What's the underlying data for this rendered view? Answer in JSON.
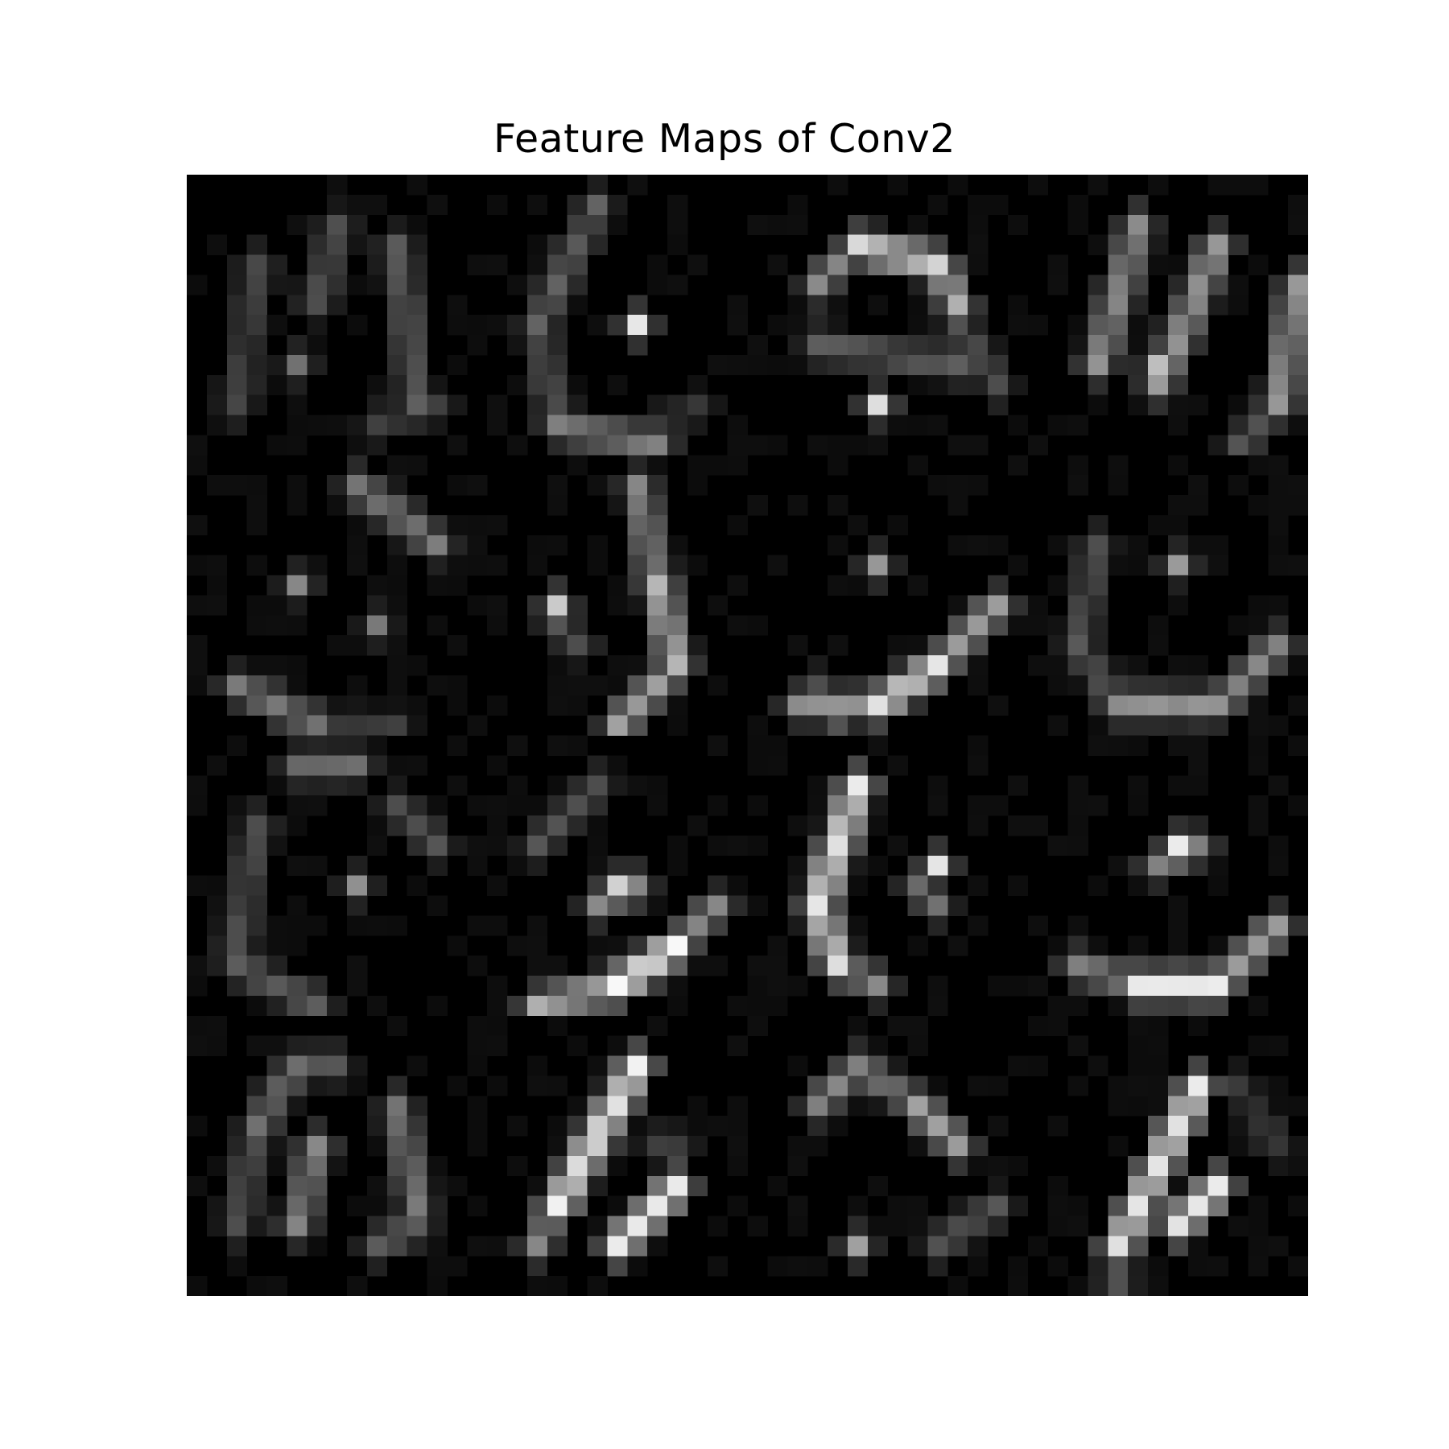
{
  "figure": {
    "title": "Feature Maps of Conv2",
    "background_color": "#ffffff",
    "colormap": "gray",
    "grid_rows": 4,
    "grid_cols": 4,
    "map_resolution": 14,
    "interpolation": "nearest",
    "axes_visible": false
  },
  "feature_maps": [
    {
      "index": 1,
      "description": "two vertical strokes (digit-like loops)",
      "peak_intensity": 0.45
    },
    {
      "index": 2,
      "description": "bright center dot with curved left/bottom stroke",
      "peak_intensity": 0.92
    },
    {
      "index": 3,
      "description": "top arc, middle band, bottom arc",
      "peak_intensity": 0.85
    },
    {
      "index": 4,
      "description": "diagonal strokes with right vertical",
      "peak_intensity": 0.75
    },
    {
      "index": 5,
      "description": "faint diagonal with scattered dots",
      "peak_intensity": 0.5
    },
    {
      "index": 6,
      "description": "right-side vertical curve with left blob",
      "peak_intensity": 0.8
    },
    {
      "index": 7,
      "description": "bright bottom curve with small upper blob",
      "peak_intensity": 0.88
    },
    {
      "index": 8,
      "description": "bottom curved band with center dot",
      "peak_intensity": 0.6
    },
    {
      "index": 9,
      "description": "faint ring with center dot",
      "peak_intensity": 0.55
    },
    {
      "index": 10,
      "description": "bright bottom arc with diagonal middle stroke",
      "peak_intensity": 1.0
    },
    {
      "index": 11,
      "description": "bright left vertical arc with small right blob",
      "peak_intensity": 0.9
    },
    {
      "index": 12,
      "description": "bottom bright arc with upper dot",
      "peak_intensity": 0.9
    },
    {
      "index": 13,
      "description": "inverted-V loops with vertical strokes",
      "peak_intensity": 0.5
    },
    {
      "index": 14,
      "description": "two parallel bright diagonals",
      "peak_intensity": 0.95
    },
    {
      "index": 15,
      "description": "inverted V with bottom blob",
      "peak_intensity": 0.6
    },
    {
      "index": 16,
      "description": "two parallel bright diagonals, right column",
      "peak_intensity": 0.9
    }
  ]
}
